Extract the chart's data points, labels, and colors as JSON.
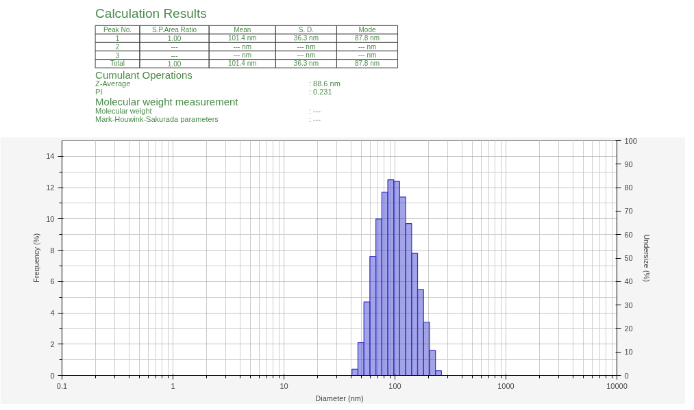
{
  "chart_data": [
    {
      "type": "other",
      "title": "Calculation Results",
      "annotations": [
        "Peak No.",
        "S.P.Area Ratio",
        "Mean",
        "S. D.",
        "Mode",
        "1",
        "1.00",
        "101.4 nm",
        "36.3 nm",
        "87.8 nm",
        "2",
        "---",
        "--- nm",
        "--- nm",
        "--- nm",
        "3",
        "---",
        "--- nm",
        "--- nm",
        "--- nm",
        "Total",
        "1.00",
        "101.4 nm",
        "36.3 nm",
        "87.8 nm",
        "Cumulant Operations",
        "Z-Average",
        ": 88.6 nm",
        "PI",
        ": 0.231",
        "Molecular weight measurement",
        "Molecular weight",
        ": ---",
        "Mark-Houwink-Sakurada parameters",
        ": ---"
      ],
      "color": "#4a8a4a"
    },
    {
      "type": "histogram",
      "xlabel": "Diameter (nm)",
      "ylabel": "Frequency (%)",
      "y2label": "Undersize (%)",
      "log": "x",
      "bins": [
        41.0,
        46.4,
        52.5,
        59.4,
        67.3,
        76.1,
        86.2,
        97.5,
        110.3,
        124.9,
        141.3,
        159.9,
        181.0,
        204.8,
        231.8,
        262.3
      ],
      "values": [
        0.4,
        2.1,
        4.7,
        7.6,
        10.0,
        11.7,
        12.5,
        12.4,
        11.4,
        9.7,
        7.8,
        5.5,
        3.4,
        1.6,
        0.3
      ],
      "color": "#3333cc",
      "xlim": [
        0.1,
        10000
      ],
      "xticks": [
        0.1,
        1,
        10,
        100,
        1000,
        10000
      ],
      "ylim": [
        0,
        15
      ],
      "yticks": [
        0,
        2,
        4,
        6,
        8,
        10,
        12,
        14
      ],
      "y2lim": [
        0,
        100
      ],
      "y2ticks": [
        0,
        10,
        20,
        30,
        40,
        50,
        60,
        70,
        80,
        90,
        100
      ],
      "grid": true
    }
  ]
}
